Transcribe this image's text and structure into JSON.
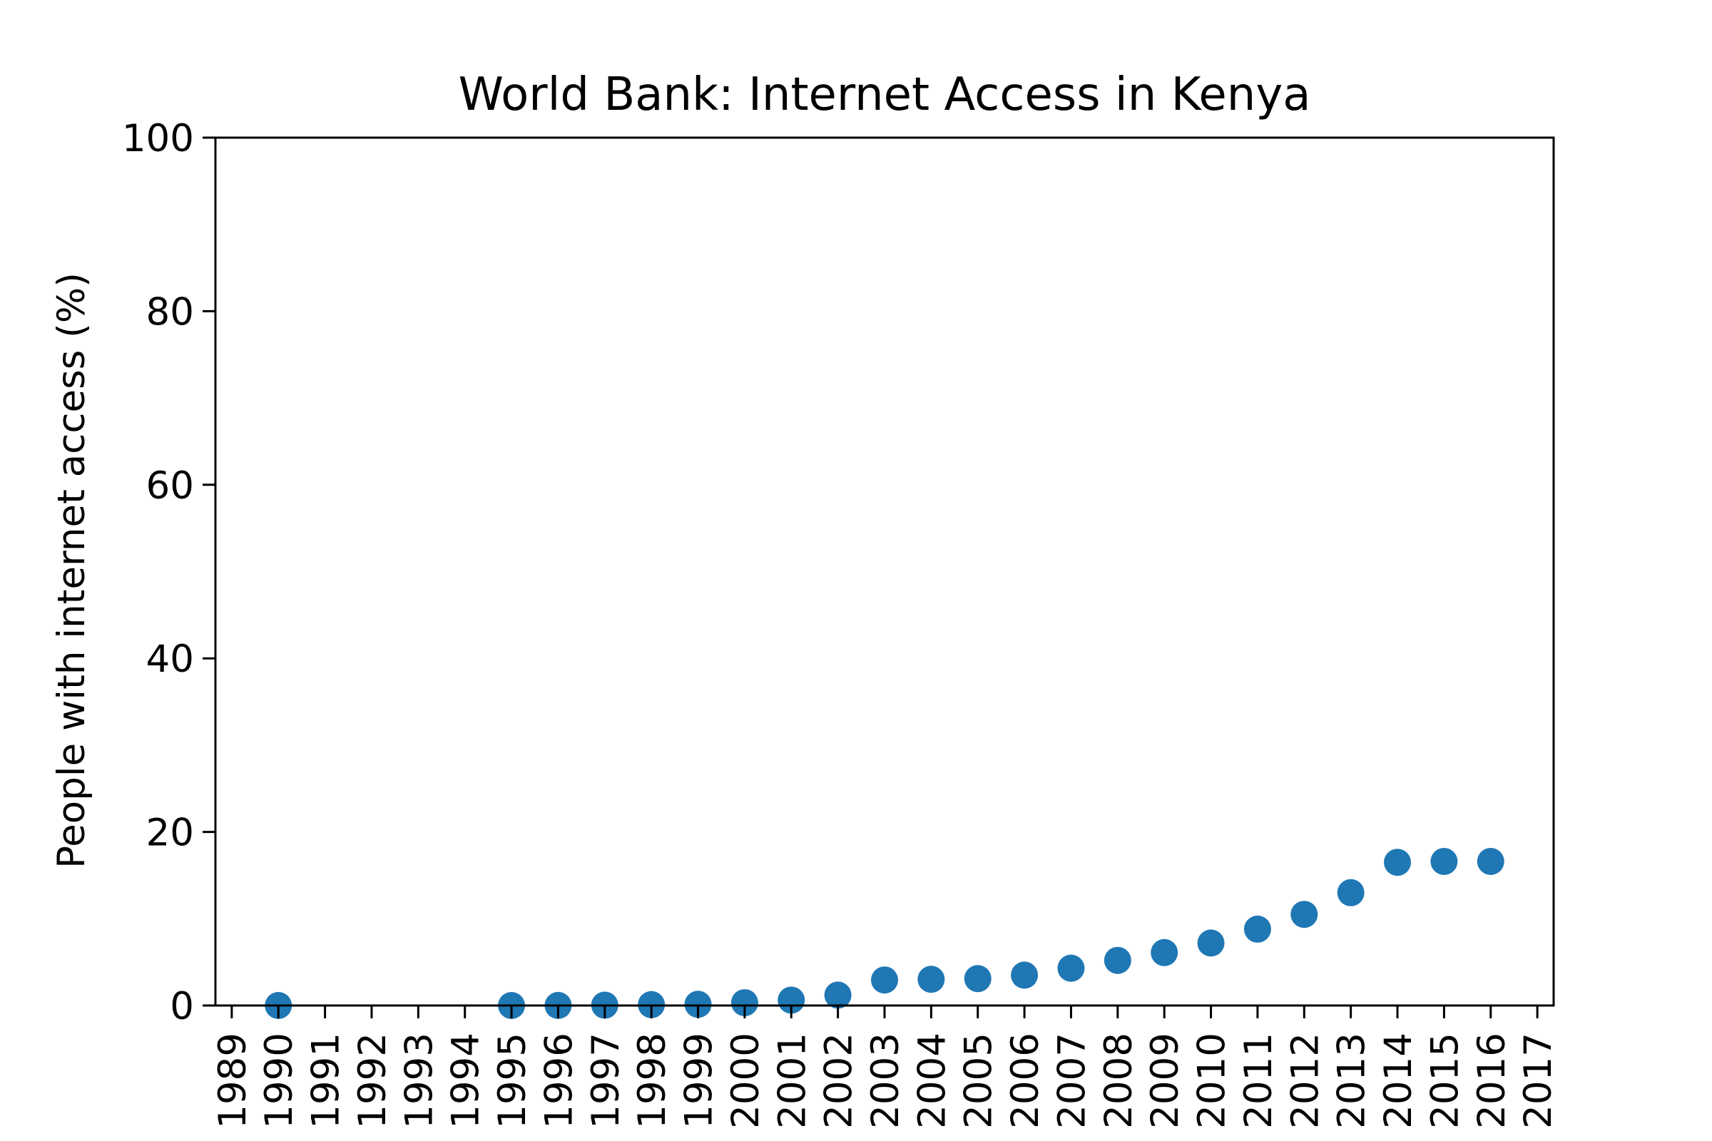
{
  "chart_data": {
    "type": "scatter",
    "title": "World Bank: Internet Access in Kenya",
    "xlabel": "",
    "ylabel": "People with internet access (%)",
    "xlim": [
      1988.65,
      2017.35
    ],
    "ylim": [
      0,
      100
    ],
    "x_ticks": [
      1989,
      1990,
      1991,
      1992,
      1993,
      1994,
      1995,
      1996,
      1997,
      1998,
      1999,
      2000,
      2001,
      2002,
      2003,
      2004,
      2005,
      2006,
      2007,
      2008,
      2009,
      2010,
      2011,
      2012,
      2013,
      2014,
      2015,
      2016,
      2017
    ],
    "y_ticks": [
      0,
      20,
      40,
      60,
      80,
      100
    ],
    "grid": false,
    "legend": "none",
    "marker_color": "#1f77b4",
    "series": [
      {
        "name": "Kenya",
        "x": [
          1990,
          1995,
          1996,
          1997,
          1998,
          1999,
          2000,
          2001,
          2002,
          2003,
          2004,
          2005,
          2006,
          2007,
          2008,
          2009,
          2010,
          2011,
          2012,
          2013,
          2014,
          2015,
          2016
        ],
        "y": [
          0,
          0.0,
          0.01,
          0.04,
          0.1,
          0.14,
          0.32,
          0.62,
          1.2,
          2.94,
          3.02,
          3.1,
          3.5,
          4.3,
          5.2,
          6.1,
          7.2,
          8.8,
          10.5,
          13.0,
          16.5,
          16.6,
          16.6
        ]
      }
    ]
  }
}
